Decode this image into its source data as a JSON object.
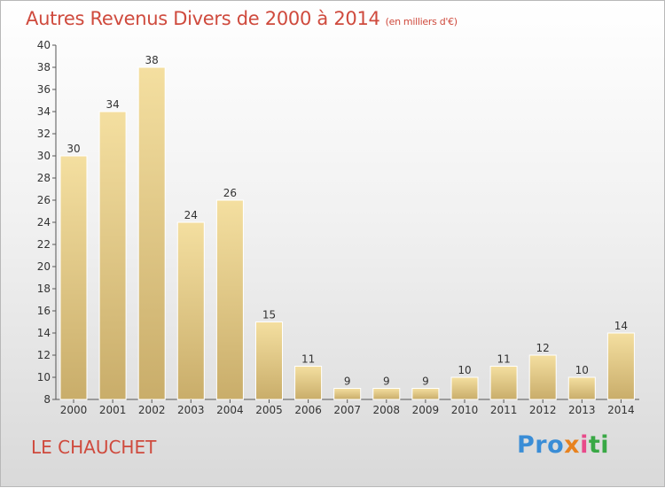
{
  "title": "Autres Revenus Divers de 2000 à 2014",
  "title_unit": "(en milliers d'€)",
  "place": "LE CHAUCHET",
  "logo": {
    "p1": "Pro",
    "p2": "x",
    "p3": "i",
    "p4": "ti"
  },
  "colors": {
    "bar_top": "#f4dfa0",
    "bar_bottom": "#c9ad6a",
    "title": "#cf4a3d"
  },
  "chart_data": {
    "type": "bar",
    "categories": [
      "2000",
      "2001",
      "2002",
      "2003",
      "2004",
      "2005",
      "2006",
      "2007",
      "2008",
      "2009",
      "2010",
      "2011",
      "2012",
      "2013",
      "2014"
    ],
    "values": [
      30,
      34,
      38,
      24,
      26,
      15,
      11,
      9,
      9,
      9,
      10,
      11,
      12,
      10,
      14
    ],
    "ylim": [
      8,
      40
    ],
    "yticks": [
      8,
      10,
      12,
      14,
      16,
      18,
      20,
      22,
      24,
      26,
      28,
      30,
      32,
      34,
      36,
      38,
      40
    ],
    "grid": false
  }
}
